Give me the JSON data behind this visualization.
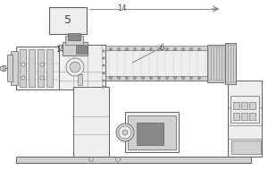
{
  "bg_color": "#ffffff",
  "line_color": "#606060",
  "dark_color": "#404040",
  "light_gray": "#cccccc",
  "mid_gray": "#999999",
  "fill_light": "#eeeeee",
  "fill_mid": "#d0d0d0",
  "fill_dark": "#888888",
  "label_5": "5",
  "label_14_top": "14",
  "label_14_left": "14",
  "label_6": "6"
}
